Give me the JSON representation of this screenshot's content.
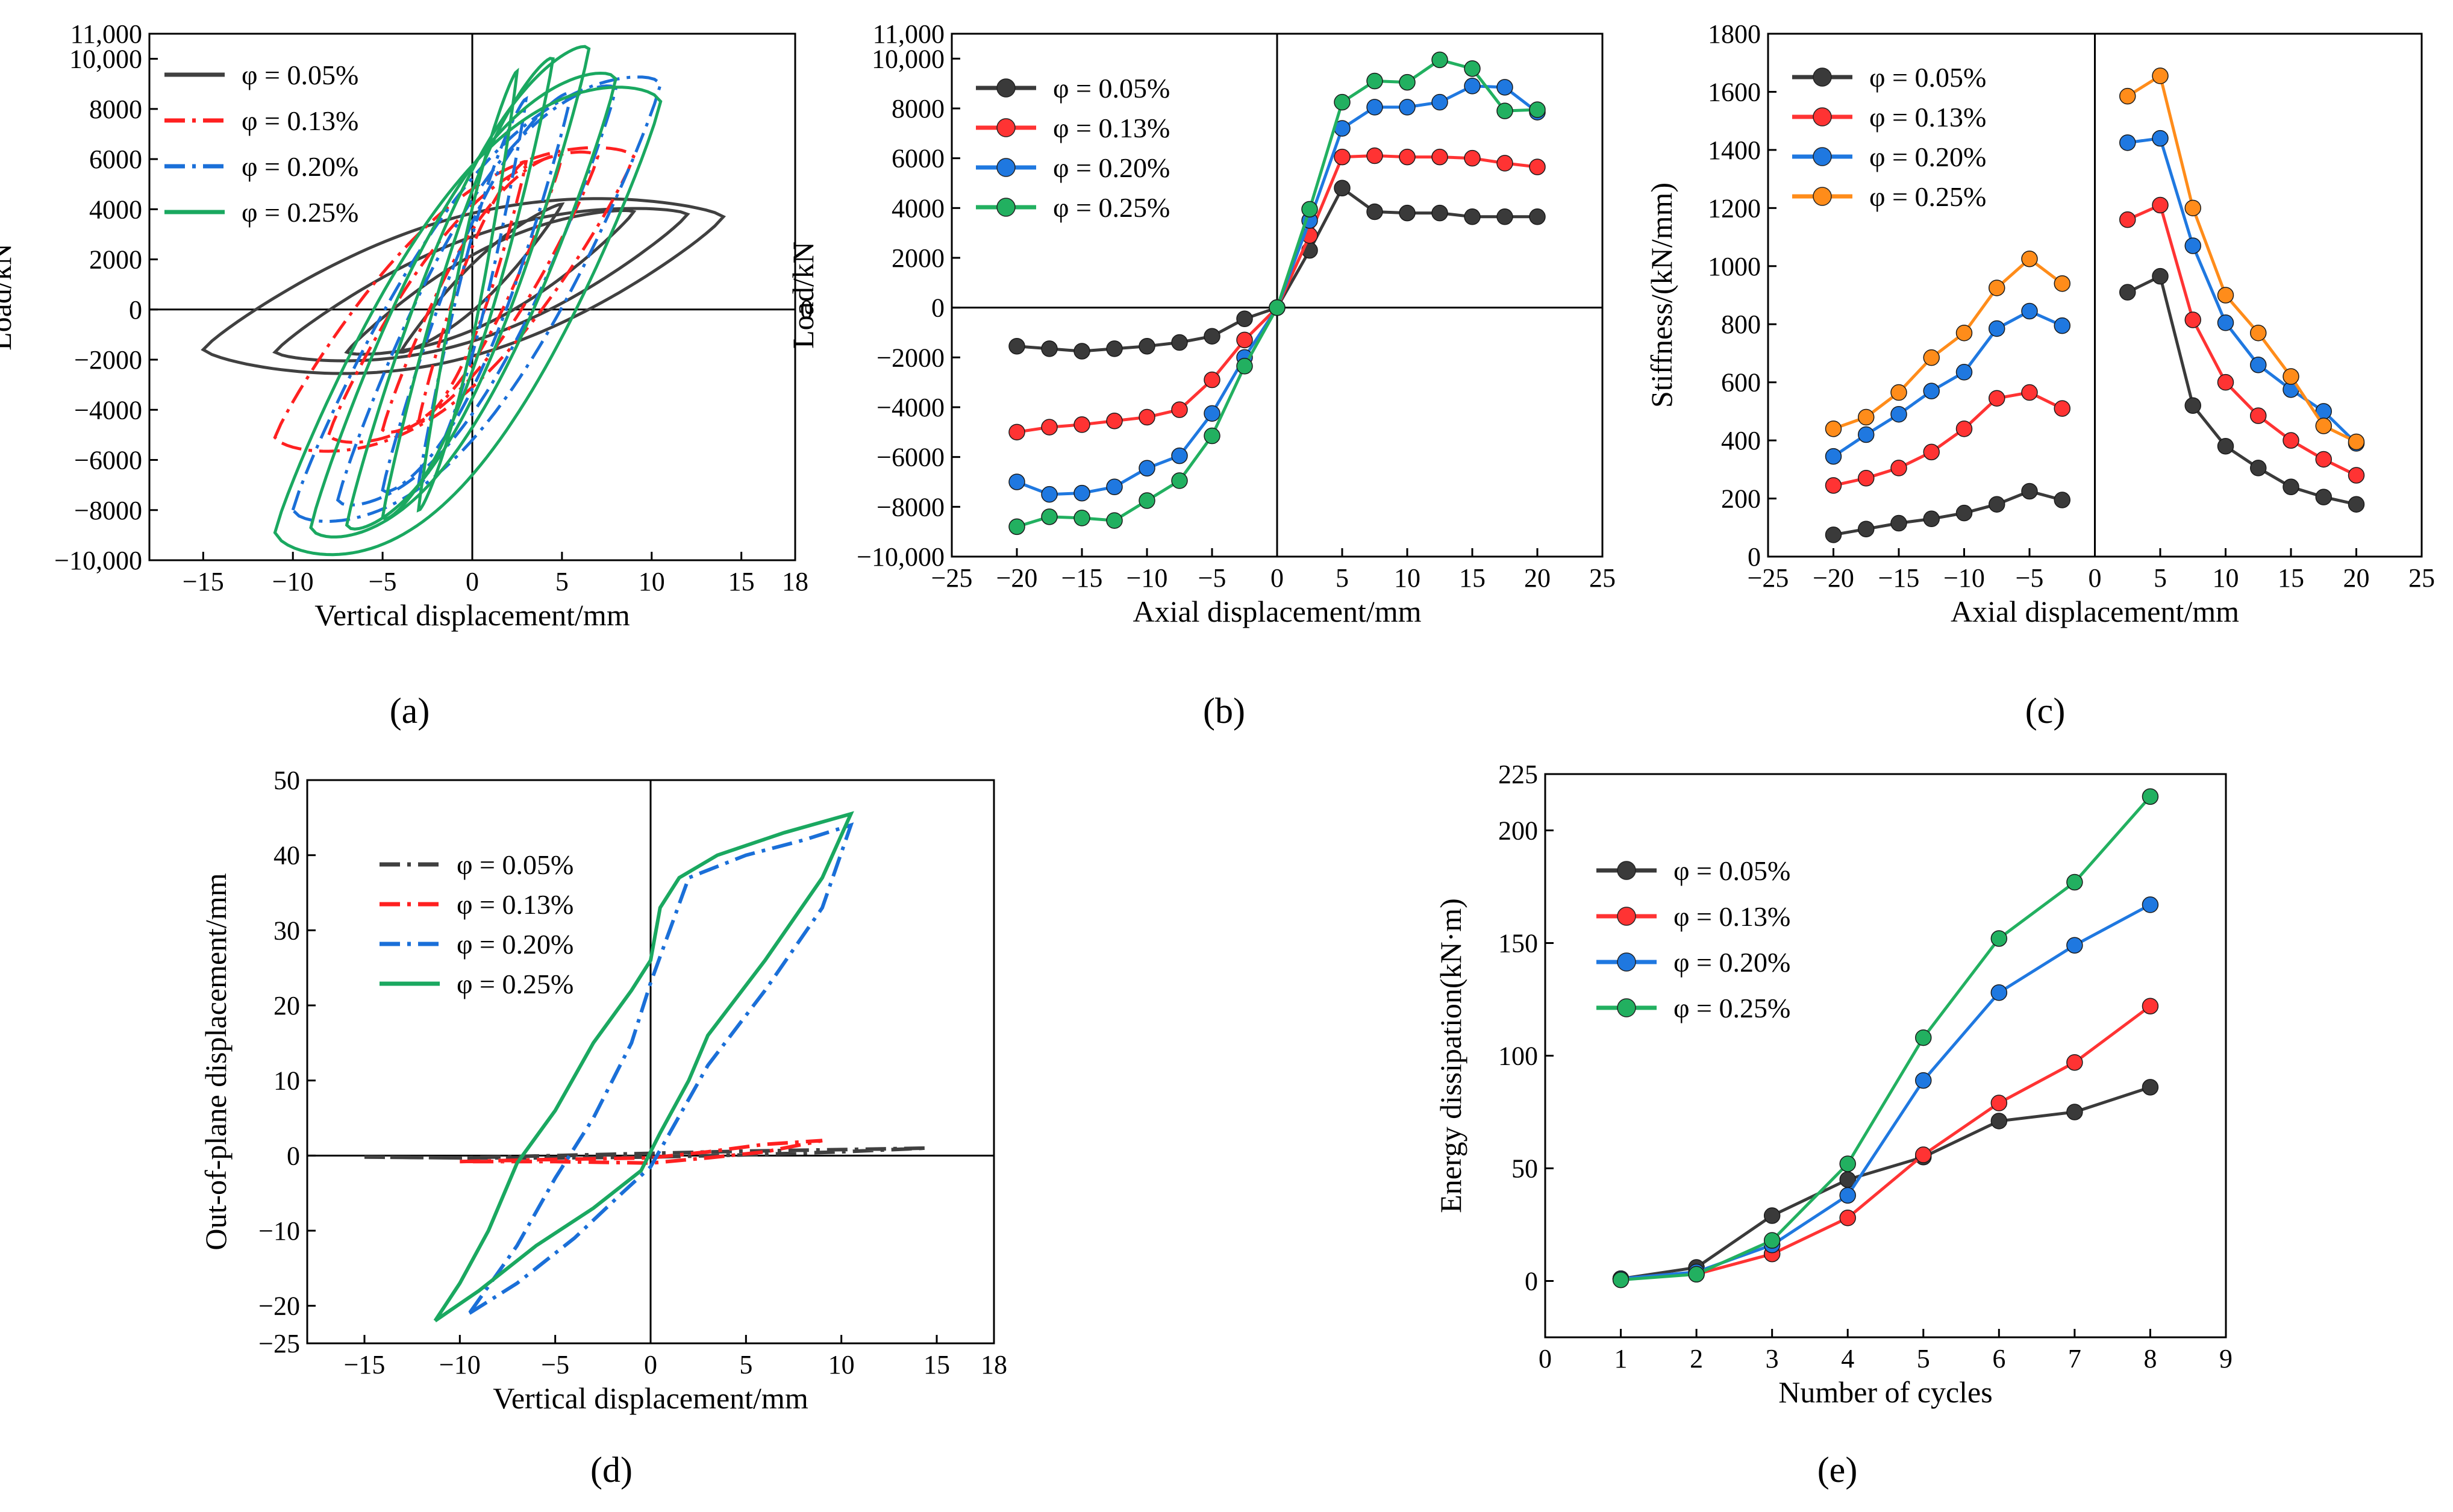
{
  "figure": {
    "captions": [
      "(a)",
      "(b)",
      "(c)",
      "(d)",
      "(e)"
    ]
  },
  "chart_data": [
    {
      "id": "a",
      "type": "line",
      "caption": "(a)",
      "xlabel": "Vertical displacement/mm",
      "ylabel": "Load/kN",
      "xlim": [
        -18,
        18
      ],
      "ylim": [
        -10000,
        11000
      ],
      "xticks": [
        -15,
        -10,
        -5,
        0,
        5,
        10,
        15,
        18
      ],
      "xtick_labels": [
        "−15",
        "−10",
        "−5",
        "0",
        "5",
        "10",
        "15",
        "18"
      ],
      "yticks": [
        -10000,
        -8000,
        -6000,
        -4000,
        -2000,
        0,
        2000,
        4000,
        6000,
        8000,
        10000,
        11000
      ],
      "ytick_labels": [
        "−10,000",
        "−8000",
        "−6000",
        "−4000",
        "−2000",
        "0",
        "2000",
        "4000",
        "6000",
        "8000",
        "10,000",
        "11,000"
      ],
      "extra_labels": [
        "0"
      ],
      "legend_position": "top-left",
      "series": [
        {
          "name": "φ = 0.05%",
          "color": "#404040",
          "dash": "solid",
          "loops": [
            [
              -15,
              -1600,
              14,
              3700,
              3000
            ],
            [
              -11,
              -1700,
              12,
              3800,
              2200
            ],
            [
              -7,
              -1700,
              9,
              3900,
              1600
            ],
            [
              -4,
              -1700,
              5,
              4200,
              1000
            ]
          ]
        },
        {
          "name": "φ = 0.13%",
          "color": "#ff2020",
          "dash": "dashdot",
          "loops": [
            [
              -11,
              -5100,
              9,
              6100,
              4200
            ],
            [
              -8,
              -5000,
              7,
              6100,
              3600
            ],
            [
              -5,
              -4800,
              5,
              6100,
              2800
            ],
            [
              -3,
              -4500,
              3,
              5900,
              2000
            ]
          ]
        },
        {
          "name": "φ = 0.20%",
          "color": "#1a6fd8",
          "dash": "dashdot",
          "loops": [
            [
              -10,
              -8000,
              10.5,
              9000,
              5500
            ],
            [
              -7.5,
              -7600,
              8,
              8800,
              4500
            ],
            [
              -5,
              -7200,
              5.5,
              8600,
              3500
            ],
            [
              -3,
              -7000,
              3,
              8400,
              2500
            ]
          ]
        },
        {
          "name": "φ = 0.25%",
          "color": "#1aa860",
          "dash": "solid",
          "loops": [
            [
              -11,
              -8900,
              10.5,
              8300,
              6500
            ],
            [
              -9,
              -8700,
              8,
              9200,
              5500
            ],
            [
              -7,
              -8600,
              6.5,
              10400,
              4800
            ],
            [
              -5,
              -8300,
              4.5,
              10000,
              3800
            ],
            [
              -3,
              -8000,
              2.5,
              9500,
              2800
            ]
          ]
        }
      ]
    },
    {
      "id": "b",
      "type": "line",
      "caption": "(b)",
      "xlabel": "Axial displacement/mm",
      "ylabel": "Load/kN",
      "xlim": [
        -25,
        25
      ],
      "ylim": [
        -10000,
        11000
      ],
      "xticks": [
        -25,
        -20,
        -15,
        -10,
        -5,
        0,
        5,
        10,
        15,
        20,
        25
      ],
      "xtick_labels": [
        "−25",
        "−20",
        "−15",
        "−10",
        "−5",
        "0",
        "5",
        "10",
        "15",
        "20",
        "25"
      ],
      "yticks": [
        -10000,
        -8000,
        -6000,
        -4000,
        -2000,
        0,
        2000,
        4000,
        6000,
        8000,
        10000,
        11000
      ],
      "ytick_labels": [
        "−10,000",
        "−8000",
        "−6000",
        "−4000",
        "−2000",
        "0",
        "2000",
        "4000",
        "6000",
        "8000",
        "10,000",
        "11,000"
      ],
      "legend_position": "top-left",
      "x": [
        -20,
        -17.5,
        -15,
        -12.5,
        -10,
        -7.5,
        -5,
        -2.5,
        0,
        2.5,
        5,
        7.5,
        10,
        12.5,
        15,
        17.5,
        20
      ],
      "series": [
        {
          "name": "φ = 0.05%",
          "color": "#3a3a3a",
          "values": [
            -1550,
            -1650,
            -1750,
            -1650,
            -1550,
            -1400,
            -1150,
            -450,
            0,
            2300,
            4800,
            3850,
            3800,
            3800,
            3650,
            3650,
            3650
          ]
        },
        {
          "name": "φ = 0.13%",
          "color": "#ff3333",
          "values": [
            -5000,
            -4800,
            -4700,
            -4550,
            -4400,
            -4100,
            -2900,
            -1300,
            0,
            2900,
            6050,
            6100,
            6050,
            6050,
            6000,
            5800,
            5650
          ]
        },
        {
          "name": "φ = 0.20%",
          "color": "#1f78e0",
          "values": [
            -7000,
            -7500,
            -7450,
            -7200,
            -6450,
            -5950,
            -4250,
            -2000,
            0,
            3500,
            7200,
            8050,
            8050,
            8250,
            8900,
            8850,
            7850
          ]
        },
        {
          "name": "φ = 0.25%",
          "color": "#22b060",
          "values": [
            -8800,
            -8400,
            -8450,
            -8550,
            -7750,
            -6950,
            -5150,
            -2350,
            0,
            3950,
            8250,
            9100,
            9050,
            9950,
            9600,
            7900,
            7950
          ]
        }
      ]
    },
    {
      "id": "c",
      "type": "line",
      "caption": "(c)",
      "xlabel": "Axial displacement/mm",
      "ylabel": "Stiffness/(kN/mm)",
      "xlim": [
        -25,
        25
      ],
      "ylim": [
        0,
        1800
      ],
      "xticks": [
        -25,
        -20,
        -15,
        -10,
        -5,
        0,
        5,
        10,
        15,
        20,
        25
      ],
      "xtick_labels": [
        "−25",
        "−20",
        "−15",
        "−10",
        "−5",
        "0",
        "5",
        "10",
        "15",
        "20",
        "25"
      ],
      "yticks": [
        0,
        200,
        400,
        600,
        800,
        1000,
        1200,
        1400,
        1600,
        1800
      ],
      "ytick_labels": [
        "0",
        "200",
        "400",
        "600",
        "800",
        "1000",
        "1200",
        "1400",
        "1600",
        "1800"
      ],
      "legend_position": "top-left",
      "x_neg": [
        -20,
        -17.5,
        -15,
        -12.5,
        -10,
        -7.5,
        -5,
        -2.5
      ],
      "x_pos": [
        2.5,
        5,
        7.5,
        10,
        12.5,
        15,
        17.5,
        20
      ],
      "series": [
        {
          "name": "φ = 0.05%",
          "color": "#3a3a3a",
          "neg": [
            75,
            95,
            115,
            130,
            150,
            180,
            225,
            195
          ],
          "pos": [
            910,
            965,
            520,
            380,
            305,
            240,
            205,
            180
          ]
        },
        {
          "name": "φ = 0.13%",
          "color": "#ff3333",
          "neg": [
            245,
            270,
            305,
            360,
            440,
            545,
            565,
            510
          ],
          "pos": [
            1160,
            1210,
            815,
            600,
            485,
            400,
            335,
            280
          ]
        },
        {
          "name": "φ = 0.20%",
          "color": "#1f78e0",
          "neg": [
            345,
            420,
            490,
            570,
            635,
            785,
            845,
            795
          ],
          "pos": [
            1425,
            1440,
            1070,
            805,
            660,
            575,
            500,
            390
          ]
        },
        {
          "name": "φ = 0.25%",
          "color": "#ff8c1a",
          "neg": [
            440,
            480,
            565,
            685,
            770,
            925,
            1025,
            940
          ],
          "pos": [
            1585,
            1655,
            1200,
            900,
            770,
            620,
            450,
            395
          ]
        }
      ]
    },
    {
      "id": "d",
      "type": "line",
      "caption": "(d)",
      "xlabel": "Vertical displacement/mm",
      "ylabel": "Out-of-plane displacement/mm",
      "xlim": [
        -18,
        18
      ],
      "ylim": [
        -25,
        50
      ],
      "xticks": [
        -15,
        -10,
        -5,
        0,
        5,
        10,
        15,
        18
      ],
      "xtick_labels": [
        "−15",
        "−10",
        "−5",
        "0",
        "5",
        "10",
        "15",
        "18"
      ],
      "yticks": [
        -25,
        -20,
        -10,
        0,
        10,
        20,
        30,
        40,
        50
      ],
      "ytick_labels": [
        "−25",
        "−20",
        "−10",
        "0",
        "10",
        "20",
        "30",
        "40",
        "50"
      ],
      "legend_position": "middle-left",
      "series": [
        {
          "name": "φ = 0.05%",
          "color": "#404040",
          "dash": "dashdot",
          "points": [
            [
              -15,
              -0.2
            ],
            [
              -10,
              -0.3
            ],
            [
              -5,
              0
            ],
            [
              0,
              0.3
            ],
            [
              5,
              0.6
            ],
            [
              10,
              0.8
            ],
            [
              14.5,
              1.0
            ],
            [
              10,
              0.5
            ],
            [
              5,
              0.1
            ],
            [
              0,
              -0.2
            ],
            [
              -5,
              -0.3
            ],
            [
              -10,
              -0.3
            ],
            [
              -15,
              -0.2
            ]
          ]
        },
        {
          "name": "φ = 0.13%",
          "color": "#ff2020",
          "dash": "dashdot",
          "points": [
            [
              -10,
              -0.8
            ],
            [
              -5,
              -0.5
            ],
            [
              0,
              -0.3
            ],
            [
              3,
              0.5
            ],
            [
              6,
              1.5
            ],
            [
              9,
              2.0
            ],
            [
              6,
              0.5
            ],
            [
              3,
              -0.3
            ],
            [
              0,
              -1.0
            ],
            [
              -5,
              -0.8
            ],
            [
              -10,
              -0.8
            ]
          ]
        },
        {
          "name": "φ = 0.20%",
          "color": "#1a6fd8",
          "dash": "dashdot",
          "points": [
            [
              -9.5,
              -21
            ],
            [
              -7,
              -17
            ],
            [
              -4,
              -11
            ],
            [
              -1.5,
              -5
            ],
            [
              0,
              -1.5
            ],
            [
              1,
              3
            ],
            [
              3,
              12
            ],
            [
              6,
              22
            ],
            [
              9,
              33
            ],
            [
              10.5,
              44
            ],
            [
              8,
              42
            ],
            [
              5,
              40
            ],
            [
              2,
              37
            ],
            [
              0,
              23
            ],
            [
              -1,
              15
            ],
            [
              -3,
              5
            ],
            [
              -5,
              -3
            ],
            [
              -7,
              -12
            ],
            [
              -9.5,
              -21
            ]
          ]
        },
        {
          "name": "φ = 0.25%",
          "color": "#1aa860",
          "dash": "solid",
          "points": [
            [
              -11.3,
              -22
            ],
            [
              -9,
              -18
            ],
            [
              -6,
              -12
            ],
            [
              -3,
              -7
            ],
            [
              -0.5,
              -2
            ],
            [
              0.5,
              3
            ],
            [
              2,
              10
            ],
            [
              3,
              16
            ],
            [
              6,
              26
            ],
            [
              9,
              37
            ],
            [
              10.5,
              45.5
            ],
            [
              7,
              43
            ],
            [
              3.5,
              40
            ],
            [
              1.5,
              37
            ],
            [
              0.5,
              33
            ],
            [
              0,
              26
            ],
            [
              -1,
              22
            ],
            [
              -3,
              15
            ],
            [
              -5,
              6
            ],
            [
              -7,
              -1
            ],
            [
              -8.5,
              -10
            ],
            [
              -10,
              -17
            ],
            [
              -11.3,
              -22
            ]
          ]
        }
      ]
    },
    {
      "id": "e",
      "type": "line",
      "caption": "(e)",
      "xlabel": "Number of cycles",
      "ylabel": "Energy dissipation(kN·m)",
      "xlim": [
        0,
        9
      ],
      "ylim": [
        -25,
        225
      ],
      "xticks": [
        0,
        1,
        2,
        3,
        4,
        5,
        6,
        7,
        8,
        9
      ],
      "xtick_labels": [
        "0",
        "1",
        "2",
        "3",
        "4",
        "5",
        "6",
        "7",
        "8",
        "9"
      ],
      "yticks": [
        0,
        50,
        100,
        150,
        200,
        225
      ],
      "ytick_labels": [
        "0",
        "50",
        "100",
        "150",
        "200",
        "225"
      ],
      "legend_position": "top-left",
      "x": [
        1,
        2,
        3,
        4,
        5,
        6,
        7,
        8
      ],
      "series": [
        {
          "name": "φ = 0.05%",
          "color": "#3a3a3a",
          "values": [
            1,
            6,
            29,
            45,
            55,
            71,
            75,
            86
          ]
        },
        {
          "name": "φ = 0.13%",
          "color": "#ff3333",
          "values": [
            1,
            3,
            12,
            28,
            56,
            79,
            97,
            122
          ]
        },
        {
          "name": "φ = 0.20%",
          "color": "#1f78e0",
          "values": [
            1,
            4,
            16,
            38,
            89,
            128,
            149,
            167
          ]
        },
        {
          "name": "φ = 0.25%",
          "color": "#22b060",
          "values": [
            0.5,
            3,
            18,
            52,
            108,
            152,
            177,
            215
          ]
        }
      ]
    }
  ]
}
